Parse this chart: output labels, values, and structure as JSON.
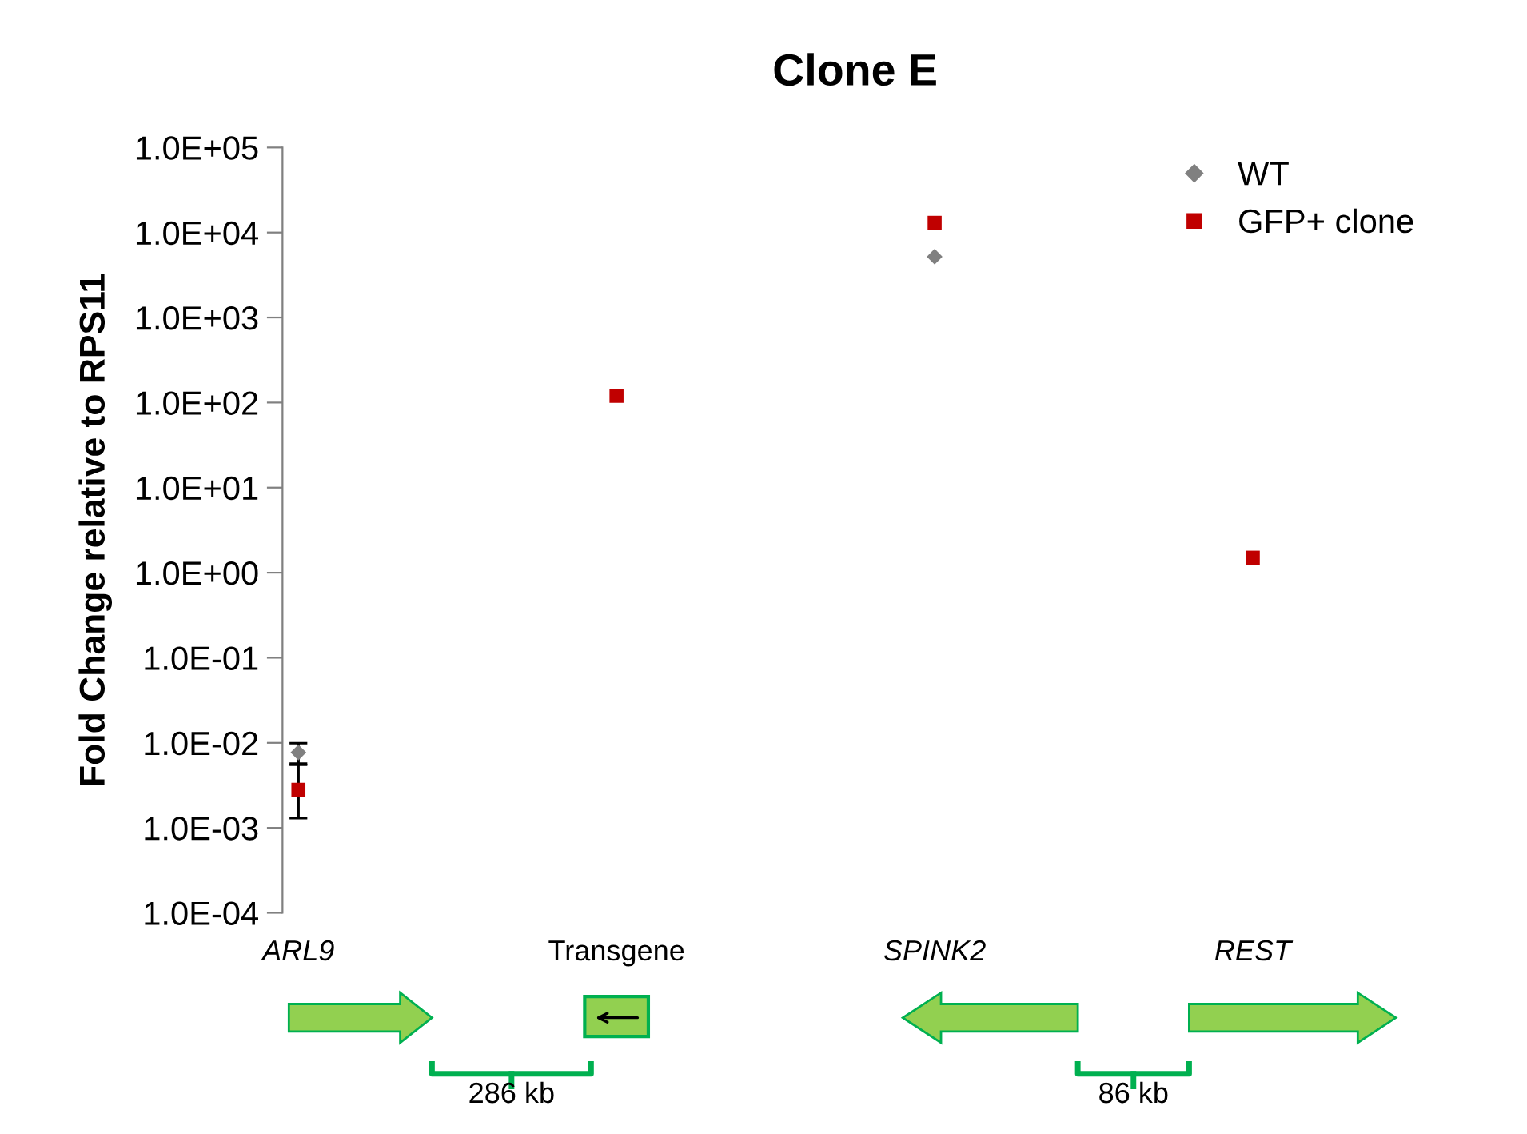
{
  "chart_data": {
    "type": "scatter",
    "title": "Clone E",
    "ylabel": "Fold Change relative to RPS11",
    "categories": [
      "ARL9",
      "Transgene",
      "SPINK2",
      "REST"
    ],
    "series": [
      {
        "name": "WT",
        "color": "#808080",
        "marker": "diamond",
        "values": [
          0.0077,
          null,
          5200,
          null
        ],
        "errors": [
          [
            0.0055,
            0.0099
          ],
          null,
          null,
          null
        ]
      },
      {
        "name": "GFP+ clone",
        "color": "#c00000",
        "marker": "square",
        "values": [
          0.0028,
          120,
          13000,
          1.5
        ],
        "errors": [
          [
            0.0013,
            0.0057
          ],
          null,
          null,
          null
        ]
      }
    ],
    "log": "y",
    "ylim": [
      0.0001,
      100000
    ],
    "yticks": [
      {
        "value": 0.0001,
        "label": "1.0E-04"
      },
      {
        "value": 0.001,
        "label": "1.0E-03"
      },
      {
        "value": 0.01,
        "label": "1.0E-02"
      },
      {
        "value": 0.1,
        "label": "1.0E-01"
      },
      {
        "value": 1,
        "label": "1.0E+00"
      },
      {
        "value": 10,
        "label": "1.0E+01"
      },
      {
        "value": 100,
        "label": "1.0E+02"
      },
      {
        "value": 1000,
        "label": "1.0E+03"
      },
      {
        "value": 10000,
        "label": "1.0E+04"
      },
      {
        "value": 100000,
        "label": "1.0E+05"
      }
    ],
    "grid": false,
    "legend": "top right",
    "annotations": [
      "286 kb",
      "86 kb"
    ]
  }
}
